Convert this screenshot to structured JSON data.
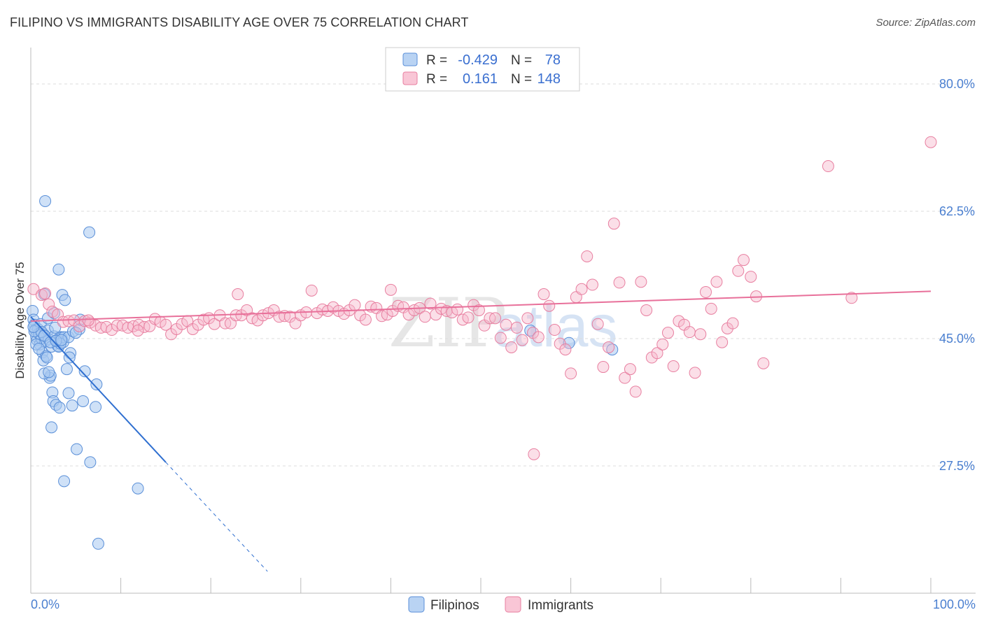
{
  "header": {
    "title": "FILIPINO VS IMMIGRANTS DISABILITY AGE OVER 75 CORRELATION CHART",
    "source": "Source: ZipAtlas.com"
  },
  "watermark": {
    "zip": "ZIP",
    "atlas": "atlas"
  },
  "colors": {
    "filipinos_fill": "#a8c8f0",
    "filipinos_stroke": "#5a8fd8",
    "filipinos_line": "#2f6fd0",
    "immigrants_fill": "#f7b8cc",
    "immigrants_stroke": "#e87fa0",
    "immigrants_line": "#e8709a",
    "tick_text": "#4a7fd0"
  },
  "legend": {
    "rows": [
      {
        "r_label": "R =",
        "r_value": "-0.429",
        "n_label": "N =",
        "n_value": "78"
      },
      {
        "r_label": "R =",
        "r_value": "0.161",
        "n_label": "N =",
        "n_value": "148"
      }
    ]
  },
  "chart_data": {
    "type": "scatter",
    "title": "FILIPINO VS IMMIGRANTS DISABILITY AGE OVER 75 CORRELATION CHART",
    "xlabel": "",
    "ylabel": "Disability Age Over 75",
    "xlim": [
      0,
      100
    ],
    "ylim": [
      10,
      85
    ],
    "x_tick_labels": [
      "0.0%",
      "100.0%"
    ],
    "y_ticks": [
      27.5,
      45.0,
      62.5,
      80.0
    ],
    "y_tick_labels": [
      "27.5%",
      "45.0%",
      "62.5%",
      "80.0%"
    ],
    "grid": true,
    "legend_position": "top-center",
    "series": [
      {
        "name": "Filipinos",
        "points": [
          [
            0.2,
            48.8
          ],
          [
            0.3,
            47.6
          ],
          [
            0.4,
            46.9
          ],
          [
            0.5,
            46.2
          ],
          [
            0.6,
            45.3
          ],
          [
            0.7,
            44.8
          ],
          [
            0.8,
            46.3
          ],
          [
            0.9,
            45.7
          ],
          [
            1.0,
            44.2
          ],
          [
            1.1,
            47.0
          ],
          [
            1.2,
            45.0
          ],
          [
            1.3,
            43.1
          ],
          [
            1.4,
            42.0
          ],
          [
            1.5,
            45.5
          ],
          [
            1.6,
            44.6
          ],
          [
            1.7,
            42.6
          ],
          [
            1.8,
            42.4
          ],
          [
            1.9,
            46.1
          ],
          [
            2.0,
            44.9
          ],
          [
            2.1,
            39.6
          ],
          [
            2.2,
            39.9
          ],
          [
            2.3,
            43.9
          ],
          [
            2.4,
            37.6
          ],
          [
            2.5,
            36.4
          ],
          [
            2.6,
            45.3
          ],
          [
            2.7,
            46.5
          ],
          [
            2.8,
            35.9
          ],
          [
            2.9,
            44.8
          ],
          [
            3.0,
            44.0
          ],
          [
            3.1,
            43.9
          ],
          [
            3.2,
            35.5
          ],
          [
            3.3,
            45.2
          ],
          [
            3.4,
            45.1
          ],
          [
            3.5,
            51.0
          ],
          [
            3.6,
            44.5
          ],
          [
            3.7,
            45.2
          ],
          [
            4.0,
            40.8
          ],
          [
            4.2,
            37.5
          ],
          [
            4.4,
            43.0
          ],
          [
            4.6,
            35.8
          ],
          [
            1.6,
            63.9
          ],
          [
            3.1,
            54.5
          ],
          [
            6.5,
            59.6
          ],
          [
            1.5,
            40.2
          ],
          [
            2.0,
            40.4
          ],
          [
            2.3,
            32.8
          ],
          [
            5.1,
            29.8
          ],
          [
            6.6,
            28.0
          ],
          [
            3.7,
            25.4
          ],
          [
            11.9,
            24.4
          ],
          [
            7.5,
            16.8
          ],
          [
            6.0,
            40.5
          ],
          [
            7.2,
            35.6
          ],
          [
            7.3,
            38.7
          ],
          [
            5.8,
            36.4
          ],
          [
            3.8,
            50.3
          ],
          [
            1.5,
            51.1
          ],
          [
            1.9,
            47.8
          ],
          [
            2.6,
            48.5
          ],
          [
            3.3,
            44.3
          ],
          [
            4.2,
            45.2
          ],
          [
            4.7,
            46.0
          ],
          [
            5.4,
            46.3
          ],
          [
            0.4,
            46.0
          ],
          [
            0.6,
            44.2
          ],
          [
            0.9,
            43.6
          ],
          [
            1.2,
            45.9
          ],
          [
            1.5,
            45.4
          ],
          [
            2.2,
            44.5
          ],
          [
            2.8,
            44.7
          ],
          [
            3.4,
            44.8
          ],
          [
            4.3,
            42.4
          ],
          [
            5.0,
            45.8
          ],
          [
            5.5,
            47.6
          ],
          [
            55.5,
            46.1
          ],
          [
            64.6,
            43.5
          ],
          [
            59.8,
            44.4
          ],
          [
            0.3,
            46.6
          ]
        ]
      },
      {
        "name": "Immigrants",
        "points": [
          [
            0.3,
            51.8
          ],
          [
            1.2,
            51.0
          ],
          [
            1.6,
            51.2
          ],
          [
            2.0,
            49.7
          ],
          [
            2.4,
            48.7
          ],
          [
            3.0,
            48.3
          ],
          [
            3.6,
            47.3
          ],
          [
            4.2,
            47.4
          ],
          [
            4.8,
            47.5
          ],
          [
            5.4,
            46.7
          ],
          [
            6.0,
            47.4
          ],
          [
            6.6,
            47.2
          ],
          [
            7.2,
            46.8
          ],
          [
            7.8,
            46.5
          ],
          [
            8.4,
            46.6
          ],
          [
            9.0,
            46.2
          ],
          [
            9.6,
            46.8
          ],
          [
            10.2,
            46.8
          ],
          [
            10.8,
            46.5
          ],
          [
            11.4,
            46.7
          ],
          [
            12.0,
            46.9
          ],
          [
            12.6,
            46.6
          ],
          [
            13.2,
            46.7
          ],
          [
            13.8,
            47.7
          ],
          [
            14.4,
            47.3
          ],
          [
            15.0,
            46.9
          ],
          [
            15.6,
            45.6
          ],
          [
            16.2,
            46.3
          ],
          [
            16.8,
            47.0
          ],
          [
            17.4,
            47.4
          ],
          [
            18.0,
            46.3
          ],
          [
            18.6,
            46.9
          ],
          [
            19.2,
            47.6
          ],
          [
            19.8,
            47.8
          ],
          [
            20.4,
            47.0
          ],
          [
            21.0,
            48.2
          ],
          [
            21.6,
            47.1
          ],
          [
            22.2,
            47.1
          ],
          [
            22.8,
            48.2
          ],
          [
            23.4,
            48.2
          ],
          [
            24.0,
            48.9
          ],
          [
            24.6,
            47.8
          ],
          [
            25.2,
            47.5
          ],
          [
            25.8,
            48.2
          ],
          [
            26.4,
            48.5
          ],
          [
            27.0,
            48.9
          ],
          [
            27.6,
            48.0
          ],
          [
            28.2,
            48.1
          ],
          [
            28.8,
            48.0
          ],
          [
            29.4,
            47.1
          ],
          [
            30.0,
            48.2
          ],
          [
            30.6,
            48.6
          ],
          [
            31.2,
            51.6
          ],
          [
            31.8,
            48.5
          ],
          [
            32.4,
            49.0
          ],
          [
            33.0,
            48.8
          ],
          [
            33.6,
            49.3
          ],
          [
            34.2,
            48.8
          ],
          [
            34.8,
            48.4
          ],
          [
            35.4,
            48.9
          ],
          [
            36.0,
            49.6
          ],
          [
            36.6,
            48.2
          ],
          [
            37.2,
            47.6
          ],
          [
            37.8,
            49.4
          ],
          [
            38.4,
            49.2
          ],
          [
            39.0,
            48.1
          ],
          [
            39.6,
            48.3
          ],
          [
            40.2,
            48.8
          ],
          [
            40.8,
            49.5
          ],
          [
            41.4,
            49.3
          ],
          [
            42.0,
            48.3
          ],
          [
            42.6,
            48.9
          ],
          [
            43.2,
            49.2
          ],
          [
            43.8,
            48.0
          ],
          [
            44.4,
            49.8
          ],
          [
            45.0,
            48.3
          ],
          [
            45.6,
            49.1
          ],
          [
            46.2,
            48.8
          ],
          [
            46.8,
            48.6
          ],
          [
            47.4,
            49.0
          ],
          [
            48.0,
            47.6
          ],
          [
            48.6,
            47.9
          ],
          [
            49.2,
            49.6
          ],
          [
            49.8,
            48.9
          ],
          [
            50.4,
            46.8
          ],
          [
            51.0,
            47.8
          ],
          [
            51.6,
            47.8
          ],
          [
            52.2,
            45.1
          ],
          [
            52.8,
            46.9
          ],
          [
            53.4,
            43.8
          ],
          [
            54.0,
            46.5
          ],
          [
            54.6,
            44.8
          ],
          [
            55.2,
            47.8
          ],
          [
            55.8,
            45.8
          ],
          [
            56.4,
            45.2
          ],
          [
            57.0,
            51.1
          ],
          [
            57.6,
            49.5
          ],
          [
            58.2,
            46.2
          ],
          [
            58.8,
            44.3
          ],
          [
            59.4,
            43.5
          ],
          [
            60.0,
            40.2
          ],
          [
            60.6,
            50.7
          ],
          [
            61.2,
            51.8
          ],
          [
            61.8,
            56.3
          ],
          [
            62.4,
            52.4
          ],
          [
            63.0,
            47.0
          ],
          [
            63.6,
            41.1
          ],
          [
            64.2,
            43.8
          ],
          [
            64.8,
            60.8
          ],
          [
            65.4,
            52.7
          ],
          [
            66.0,
            39.6
          ],
          [
            66.6,
            40.8
          ],
          [
            67.2,
            37.7
          ],
          [
            67.8,
            52.8
          ],
          [
            68.4,
            48.9
          ],
          [
            69.0,
            42.4
          ],
          [
            69.6,
            43.0
          ],
          [
            70.2,
            44.2
          ],
          [
            70.8,
            45.8
          ],
          [
            71.4,
            41.2
          ],
          [
            72.0,
            47.4
          ],
          [
            72.6,
            46.9
          ],
          [
            73.2,
            45.9
          ],
          [
            73.8,
            40.3
          ],
          [
            74.4,
            45.6
          ],
          [
            75.0,
            51.4
          ],
          [
            75.6,
            49.1
          ],
          [
            76.2,
            52.8
          ],
          [
            76.8,
            44.5
          ],
          [
            77.4,
            46.4
          ],
          [
            78.0,
            47.1
          ],
          [
            78.6,
            54.3
          ],
          [
            79.2,
            55.8
          ],
          [
            80.0,
            53.5
          ],
          [
            80.6,
            50.8
          ],
          [
            81.4,
            41.6
          ],
          [
            55.9,
            29.1
          ],
          [
            88.6,
            68.7
          ],
          [
            100.0,
            72.0
          ],
          [
            91.2,
            50.6
          ],
          [
            6.4,
            47.5
          ],
          [
            11.9,
            46.1
          ],
          [
            23.0,
            51.1
          ],
          [
            40.0,
            51.7
          ]
        ]
      }
    ],
    "trend_lines": [
      {
        "series": "Filipinos",
        "solid": [
          [
            0.0,
            48.0
          ],
          [
            15.0,
            28.0
          ]
        ],
        "dashed": [
          [
            15.0,
            28.0
          ],
          [
            26.3,
            13.0
          ]
        ]
      },
      {
        "series": "Immigrants",
        "solid": [
          [
            0.0,
            47.4
          ],
          [
            100.0,
            51.5
          ]
        ]
      }
    ],
    "bottom_legend": [
      "Filipinos",
      "Immigrants"
    ]
  }
}
